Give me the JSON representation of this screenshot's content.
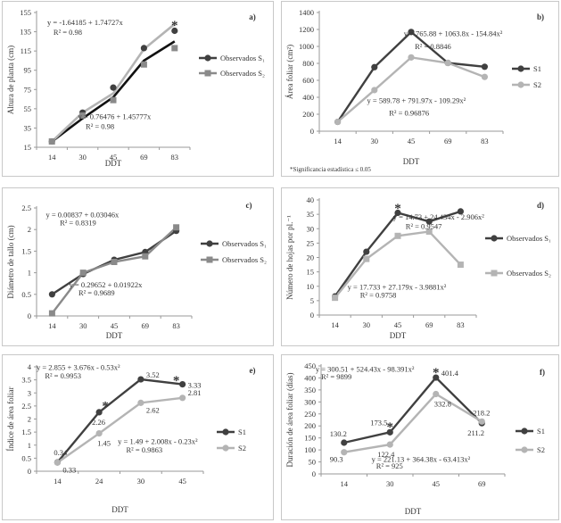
{
  "colors": {
    "s1": "#404040",
    "s2": "#b4b4b4",
    "axis": "#9a9a9a"
  },
  "footnote": "*Significancia  estadística ≤ 0.05",
  "chart_data": [
    {
      "id": "a",
      "type": "line",
      "panel_label": "a)",
      "categories": [
        "14",
        "30",
        "45",
        "69",
        "83"
      ],
      "xlabel": "DDT",
      "ylabel": "Altura de planta (cm)",
      "ylim": [
        15,
        155
      ],
      "yticks": [
        15,
        35,
        55,
        75,
        95,
        115,
        135,
        155
      ],
      "series": [
        {
          "name": "Observados S₁",
          "values": [
            21,
            51,
            77,
            118,
            136
          ],
          "marker": "circle",
          "color": "#404040",
          "fit_line": [
            21,
            45,
            67,
            105,
            125
          ],
          "fit_color": "#111111"
        },
        {
          "name": "Observados S₂",
          "values": [
            21,
            48,
            64,
            101,
            118
          ],
          "marker": "square",
          "color": "#8a8a8a",
          "fit_line": [
            21,
            51,
            71,
            117,
            143
          ],
          "fit_color": "#b4b4b4"
        }
      ],
      "annotations": [
        {
          "text": "y = -1.64185 + 1.74727x",
          "x": 0.35,
          "y": 142
        },
        {
          "text": "R² = 0.98",
          "x": 0.55,
          "y": 132
        },
        {
          "text": "y = 0.76476 + 1.45777x",
          "x": 1.35,
          "y": 44
        },
        {
          "text": "R² = 0.98",
          "x": 1.6,
          "y": 34
        },
        {
          "text": "*",
          "x": 4.0,
          "y": 143
        }
      ]
    },
    {
      "id": "b",
      "type": "line",
      "panel_label": "b)",
      "categories": [
        "14",
        "30",
        "45",
        "69",
        "83"
      ],
      "xlabel": "DDT",
      "ylabel": "Área foliar (cm²)",
      "ylim": [
        0,
        1400
      ],
      "yticks": [
        0,
        200,
        400,
        600,
        800,
        1000,
        1200,
        1400
      ],
      "series": [
        {
          "name": "S1",
          "values": [
            110,
            755,
            1170,
            805,
            760
          ],
          "marker": "circle",
          "color": "#404040"
        },
        {
          "name": "S2",
          "values": [
            110,
            485,
            870,
            805,
            640
          ],
          "marker": "circle",
          "color": "#b4b4b4"
        }
      ],
      "annotations": [
        {
          "text": "y = 765.88 + 1063.8x - 154.84x²",
          "x": 2.3,
          "y": 1120
        },
        {
          "text": "R² = 0.8846",
          "x": 2.6,
          "y": 970
        },
        {
          "text": "y = 589.78 + 791.97x - 109.29x²",
          "x": 1.3,
          "y": 330
        },
        {
          "text": "R² = 0.96876",
          "x": 1.9,
          "y": 185
        }
      ]
    },
    {
      "id": "c",
      "type": "line",
      "panel_label": "c)",
      "categories": [
        "14",
        "30",
        "45",
        "69",
        "83"
      ],
      "xlabel": "DDT",
      "ylabel": "Diámetro de tallo (cm)",
      "ylim": [
        0,
        2.5
      ],
      "yticks": [
        0,
        0.5,
        1,
        1.5,
        2,
        2.5
      ],
      "series": [
        {
          "name": "Observados S₁",
          "values": [
            0.5,
            0.97,
            1.3,
            1.48,
            1.97
          ],
          "marker": "circle",
          "color": "#404040"
        },
        {
          "name": "Observados S₂",
          "values": [
            0.06,
            1.0,
            1.25,
            1.38,
            2.05
          ],
          "marker": "square",
          "color": "#8a8a8a"
        }
      ],
      "annotations": [
        {
          "text": "y = 0.00837 + 0.03046x",
          "x": 0.3,
          "y": 2.28
        },
        {
          "text": "R² = 0.8319",
          "x": 0.75,
          "y": 2.1
        },
        {
          "text": "y = 0.29652 + 0.01922x",
          "x": 1.05,
          "y": 0.66
        },
        {
          "text": "R² = 0.9689",
          "x": 1.35,
          "y": 0.48
        }
      ]
    },
    {
      "id": "d",
      "type": "line",
      "panel_label": "d)",
      "categories": [
        "14",
        "30",
        "45",
        "69",
        "83"
      ],
      "xlabel": "DDT",
      "ylabel": "Número de hojas por pl.⁻¹",
      "ylim": [
        0,
        40
      ],
      "yticks": [
        0,
        5,
        10,
        15,
        20,
        25,
        30,
        35,
        40
      ],
      "series": [
        {
          "name": "Observados S₁",
          "values": [
            6.5,
            22,
            35.5,
            32.5,
            36
          ],
          "marker": "circle",
          "color": "#404040"
        },
        {
          "name": "Observados S₂",
          "values": [
            6,
            19.5,
            27.5,
            29,
            17.5
          ],
          "marker": "square",
          "color": "#b4b4b4"
        }
      ],
      "annotations": [
        {
          "text": "y = 14.73 + 24.434x - 2.906x²",
          "x": 2.35,
          "y": 33.2
        },
        {
          "text": "R² = 0.9547",
          "x": 2.75,
          "y": 30
        },
        {
          "text": "y = 17.733 + 27.179x - 3.9881x²",
          "x": 0.9,
          "y": 8.8
        },
        {
          "text": "R² = 0.9758",
          "x": 1.3,
          "y": 6
        },
        {
          "text": "*",
          "x": 2.0,
          "y": 37.5
        }
      ]
    },
    {
      "id": "e",
      "type": "line",
      "panel_label": "e)",
      "categories": [
        "14",
        "24",
        "30",
        "45"
      ],
      "xlabel": "DDT",
      "ylabel": "Índice de área foliar",
      "ylim": [
        0,
        4
      ],
      "yticks": [
        0,
        0.5,
        1,
        1.5,
        2,
        2.5,
        3,
        3.5,
        4
      ],
      "series": [
        {
          "name": "S1",
          "values": [
            0.34,
            2.26,
            3.52,
            3.33
          ],
          "marker": "circle",
          "color": "#404040",
          "labels": [
            "0.34",
            "2.26",
            "3.52",
            "3.33"
          ]
        },
        {
          "name": "S2",
          "values": [
            0.33,
            1.45,
            2.62,
            2.81
          ],
          "marker": "circle",
          "color": "#b4b4b4",
          "labels": [
            "0.33",
            "1.45",
            "2.62",
            "2.81"
          ]
        }
      ],
      "annotations": [
        {
          "text": "y = 2.855 + 3.676x - 0.53x²",
          "x": 0.0,
          "y": 3.88
        },
        {
          "text": "R² = 0.9953",
          "x": 0.2,
          "y": 3.55
        },
        {
          "text": "y = 1.49 + 2.008x - 0.23x²",
          "x": 1.95,
          "y": 1.05
        },
        {
          "text": "R² = 0.9863",
          "x": 2.15,
          "y": 0.72
        },
        {
          "text": "*",
          "x": 1.15,
          "y": 2.55
        },
        {
          "text": "*",
          "x": 2.85,
          "y": 3.52
        }
      ]
    },
    {
      "id": "f",
      "type": "line",
      "panel_label": "f)",
      "categories": [
        "14",
        "30",
        "45",
        "69"
      ],
      "xlabel": "DDT",
      "ylabel": "Duración de área foliar (días)",
      "ylim": [
        0,
        450
      ],
      "yticks": [
        0,
        50,
        100,
        150,
        200,
        250,
        300,
        350,
        400,
        450
      ],
      "series": [
        {
          "name": "S1",
          "values": [
            130.2,
            173.5,
            401.4,
            211.2
          ],
          "marker": "circle",
          "color": "#404040",
          "labels": [
            "130.2",
            "173.5",
            "401.4",
            "211.2"
          ]
        },
        {
          "name": "S2",
          "values": [
            90.3,
            122.4,
            332.8,
            218.2
          ],
          "marker": "circle",
          "color": "#b4b4b4",
          "labels": [
            "90.3",
            "122.4",
            "332.8",
            "218.2"
          ]
        }
      ],
      "annotations": [
        {
          "text": "y = 300.51 + 524.43x - 98.391x²",
          "x": -0.12,
          "y": 425
        },
        {
          "text": "R² = 9899",
          "x": 0.0,
          "y": 395
        },
        {
          "text": "y = 221.13 + 364.38x - 63.413x²",
          "x": 1.1,
          "y": 50
        },
        {
          "text": "R² = 925",
          "x": 1.2,
          "y": 22
        },
        {
          "text": "*",
          "x": 1.0,
          "y": 200
        },
        {
          "text": "*",
          "x": 2.0,
          "y": 428
        }
      ]
    }
  ]
}
